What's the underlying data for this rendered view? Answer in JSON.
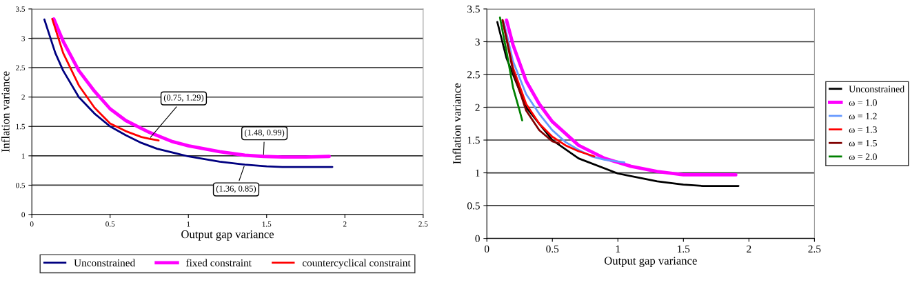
{
  "chart_data": [
    {
      "type": "line",
      "xlabel": "Output gap variance",
      "ylabel": "Inflation variance",
      "xlim": [
        0,
        2.5
      ],
      "ylim": [
        0,
        3.5
      ],
      "xticks": [
        0,
        0.5,
        1,
        1.5,
        2,
        2.5
      ],
      "yticks": [
        0,
        0.5,
        1,
        1.5,
        2,
        2.5,
        3,
        3.5
      ],
      "grid": "y",
      "legend": "bottom",
      "line_style": "solid",
      "series": [
        {
          "name": "Unconstrained",
          "color": "#000080",
          "x": [
            0.08,
            0.15,
            0.2,
            0.3,
            0.4,
            0.5,
            0.6,
            0.7,
            0.8,
            1.0,
            1.2,
            1.36,
            1.5,
            1.6,
            1.92
          ],
          "values": [
            3.32,
            2.75,
            2.45,
            2.0,
            1.72,
            1.5,
            1.35,
            1.22,
            1.12,
            0.99,
            0.9,
            0.85,
            0.82,
            0.81,
            0.81
          ]
        },
        {
          "name": "fixed constraint",
          "color": "#ff00ff",
          "x": [
            0.14,
            0.2,
            0.3,
            0.4,
            0.5,
            0.6,
            0.75,
            0.9,
            1.0,
            1.2,
            1.36,
            1.48,
            1.6,
            1.75,
            1.9
          ],
          "values": [
            3.33,
            2.95,
            2.45,
            2.1,
            1.8,
            1.6,
            1.4,
            1.24,
            1.17,
            1.07,
            1.01,
            0.99,
            0.98,
            0.98,
            0.99
          ]
        },
        {
          "name": "countercyclical constraint",
          "color": "#ff0000",
          "x": [
            0.13,
            0.2,
            0.3,
            0.4,
            0.5,
            0.6,
            0.7,
            0.75,
            0.81
          ],
          "values": [
            3.33,
            2.75,
            2.2,
            1.82,
            1.55,
            1.42,
            1.32,
            1.29,
            1.26
          ]
        }
      ],
      "annotations": [
        {
          "text": "(0.75, 1.29)",
          "x": 0.75,
          "y": 1.29
        },
        {
          "text": "(1.48, 0.99)",
          "x": 1.48,
          "y": 0.99
        },
        {
          "text": "(1.36, 0.85)",
          "x": 1.36,
          "y": 0.85
        }
      ]
    },
    {
      "type": "line",
      "xlabel": "Output gap variance",
      "ylabel": "Inflation variance",
      "xlim": [
        0,
        2.5
      ],
      "ylim": [
        0,
        3.5
      ],
      "xticks": [
        0,
        0.5,
        1,
        1.5,
        2,
        2.5
      ],
      "yticks": [
        0,
        0.5,
        1,
        1.5,
        2,
        2.5,
        3,
        3.5
      ],
      "grid": "y",
      "legend": "right",
      "line_style": "solid",
      "series": [
        {
          "name": "Unconstrained",
          "color": "#000000",
          "x": [
            0.08,
            0.15,
            0.3,
            0.5,
            0.7,
            1.0,
            1.3,
            1.5,
            1.65,
            1.92
          ],
          "values": [
            3.3,
            2.75,
            2.0,
            1.5,
            1.22,
            0.99,
            0.87,
            0.82,
            0.8,
            0.8
          ]
        },
        {
          "name": "ω = 1.0",
          "color": "#ff00ff",
          "x": [
            0.15,
            0.2,
            0.3,
            0.4,
            0.5,
            0.7,
            0.9,
            1.1,
            1.3,
            1.5,
            1.9
          ],
          "values": [
            3.33,
            2.95,
            2.4,
            2.05,
            1.78,
            1.42,
            1.22,
            1.1,
            1.02,
            0.97,
            0.97
          ]
        },
        {
          "name": "ω = 1.2",
          "color": "#6699ff",
          "x": [
            0.13,
            0.2,
            0.3,
            0.4,
            0.5,
            0.6,
            0.7,
            0.8,
            0.9,
            1.05
          ],
          "values": [
            3.3,
            2.7,
            2.2,
            1.9,
            1.65,
            1.47,
            1.35,
            1.25,
            1.2,
            1.16
          ]
        },
        {
          "name": "ω = 1.3",
          "color": "#ff0000",
          "x": [
            0.12,
            0.2,
            0.3,
            0.4,
            0.5,
            0.6,
            0.7,
            0.82
          ],
          "values": [
            3.33,
            2.6,
            2.05,
            1.75,
            1.55,
            1.42,
            1.33,
            1.25
          ]
        },
        {
          "name": "ω = 1.5",
          "color": "#800000",
          "x": [
            0.12,
            0.2,
            0.3,
            0.4,
            0.5,
            0.55
          ],
          "values": [
            3.33,
            2.55,
            1.95,
            1.65,
            1.48,
            1.45
          ]
        },
        {
          "name": "ω = 2.0",
          "color": "#008000",
          "x": [
            0.1,
            0.15,
            0.2,
            0.25,
            0.27
          ],
          "values": [
            3.37,
            2.85,
            2.3,
            1.95,
            1.8
          ]
        }
      ]
    }
  ]
}
